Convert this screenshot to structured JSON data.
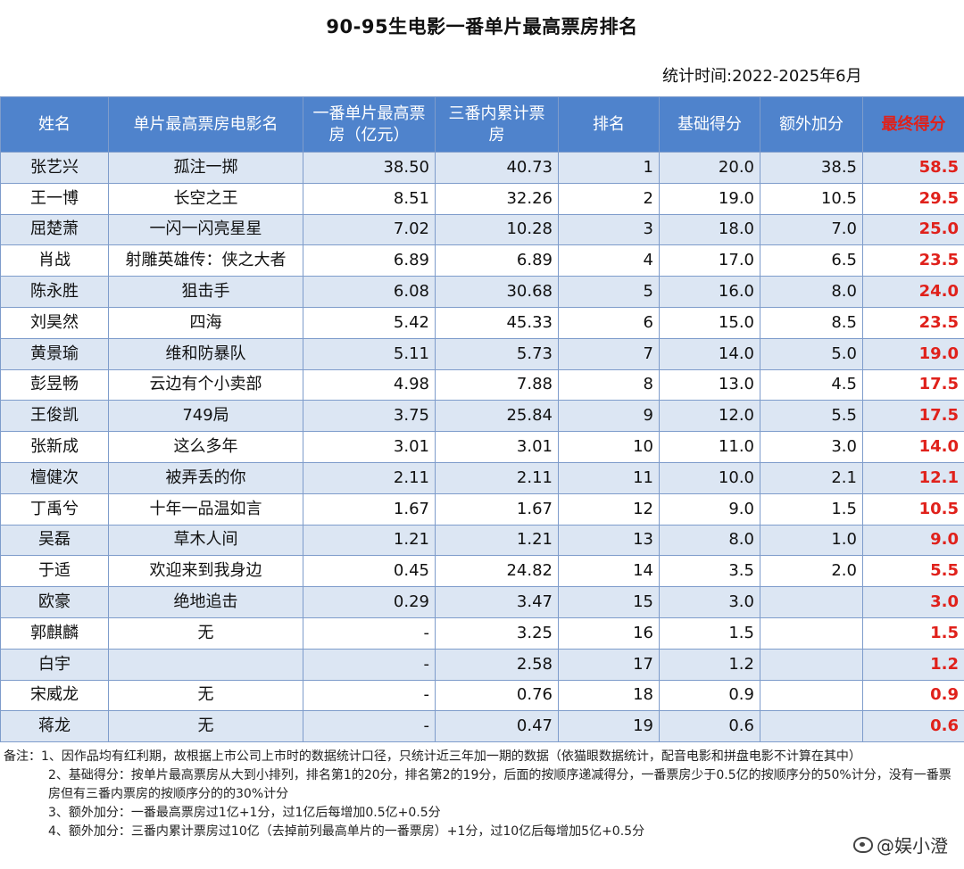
{
  "title": "90-95生电影一番单片最高票房排名",
  "stat_time": "统计时间:2022-2025年6月",
  "headers": [
    "姓名",
    "单片最高票房电影名",
    "一番单片最高票房（亿元）",
    "三番内累计票房",
    "排名",
    "基础得分",
    "额外加分",
    "最终得分"
  ],
  "rows": [
    {
      "name": "张艺兴",
      "movie": "孤注一掷",
      "top_box": "38.50",
      "cum_box": "40.73",
      "rank": "1",
      "base": "20.0",
      "extra": "38.5",
      "final": "58.5"
    },
    {
      "name": "王一博",
      "movie": "长空之王",
      "top_box": "8.51",
      "cum_box": "32.26",
      "rank": "2",
      "base": "19.0",
      "extra": "10.5",
      "final": "29.5"
    },
    {
      "name": "屈楚萧",
      "movie": "一闪一闪亮星星",
      "top_box": "7.02",
      "cum_box": "10.28",
      "rank": "3",
      "base": "18.0",
      "extra": "7.0",
      "final": "25.0"
    },
    {
      "name": "肖战",
      "movie": "射雕英雄传：侠之大者",
      "top_box": "6.89",
      "cum_box": "6.89",
      "rank": "4",
      "base": "17.0",
      "extra": "6.5",
      "final": "23.5"
    },
    {
      "name": "陈永胜",
      "movie": "狙击手",
      "top_box": "6.08",
      "cum_box": "30.68",
      "rank": "5",
      "base": "16.0",
      "extra": "8.0",
      "final": "24.0"
    },
    {
      "name": "刘昊然",
      "movie": "四海",
      "top_box": "5.42",
      "cum_box": "45.33",
      "rank": "6",
      "base": "15.0",
      "extra": "8.5",
      "final": "23.5"
    },
    {
      "name": "黄景瑜",
      "movie": "维和防暴队",
      "top_box": "5.11",
      "cum_box": "5.73",
      "rank": "7",
      "base": "14.0",
      "extra": "5.0",
      "final": "19.0"
    },
    {
      "name": "彭昱畅",
      "movie": "云边有个小卖部",
      "top_box": "4.98",
      "cum_box": "7.88",
      "rank": "8",
      "base": "13.0",
      "extra": "4.5",
      "final": "17.5"
    },
    {
      "name": "王俊凯",
      "movie": "749局",
      "top_box": "3.75",
      "cum_box": "25.84",
      "rank": "9",
      "base": "12.0",
      "extra": "5.5",
      "final": "17.5"
    },
    {
      "name": "张新成",
      "movie": "这么多年",
      "top_box": "3.01",
      "cum_box": "3.01",
      "rank": "10",
      "base": "11.0",
      "extra": "3.0",
      "final": "14.0"
    },
    {
      "name": "檀健次",
      "movie": "被弄丢的你",
      "top_box": "2.11",
      "cum_box": "2.11",
      "rank": "11",
      "base": "10.0",
      "extra": "2.1",
      "final": "12.1"
    },
    {
      "name": "丁禹兮",
      "movie": "十年一品温如言",
      "top_box": "1.67",
      "cum_box": "1.67",
      "rank": "12",
      "base": "9.0",
      "extra": "1.5",
      "final": "10.5"
    },
    {
      "name": "吴磊",
      "movie": "草木人间",
      "top_box": "1.21",
      "cum_box": "1.21",
      "rank": "13",
      "base": "8.0",
      "extra": "1.0",
      "final": "9.0"
    },
    {
      "name": "于适",
      "movie": "欢迎来到我身边",
      "top_box": "0.45",
      "cum_box": "24.82",
      "rank": "14",
      "base": "3.5",
      "extra": "2.0",
      "final": "5.5"
    },
    {
      "name": "欧豪",
      "movie": "绝地追击",
      "top_box": "0.29",
      "cum_box": "3.47",
      "rank": "15",
      "base": "3.0",
      "extra": "",
      "final": "3.0"
    },
    {
      "name": "郭麒麟",
      "movie": "无",
      "top_box": "-",
      "cum_box": "3.25",
      "rank": "16",
      "base": "1.5",
      "extra": "",
      "final": "1.5"
    },
    {
      "name": "白宇",
      "movie": "",
      "top_box": "-",
      "cum_box": "2.58",
      "rank": "17",
      "base": "1.2",
      "extra": "",
      "final": "1.2"
    },
    {
      "name": "宋威龙",
      "movie": "无",
      "top_box": "-",
      "cum_box": "0.76",
      "rank": "18",
      "base": "0.9",
      "extra": "",
      "final": "0.9"
    },
    {
      "name": "蒋龙",
      "movie": "无",
      "top_box": "-",
      "cum_box": "0.47",
      "rank": "19",
      "base": "0.6",
      "extra": "",
      "final": "0.6"
    }
  ],
  "notes": [
    "备注：1、因作品均有红利期，故根据上市公司上市时的数据统计口径，只统计近三年加一期的数据（依猫眼数据统计，配音电影和拼盘电影不计算在其中）",
    "2、基础得分：按单片最高票房从大到小排列，排名第1的20分，排名第2的19分，后面的按顺序递减得分，一番票房少于0.5亿的按顺序分的50%计分，没有一番票房但有三番内票房的按顺序分的的30%计分",
    "3、额外加分：一番最高票房过1亿+1分，过1亿后每增加0.5亿+0.5分",
    "4、额外加分：三番内累计票房过10亿（去掉前列最高单片的一番票房）+1分，过10亿后每增加5亿+0.5分"
  ],
  "watermark": "@娱小澄"
}
